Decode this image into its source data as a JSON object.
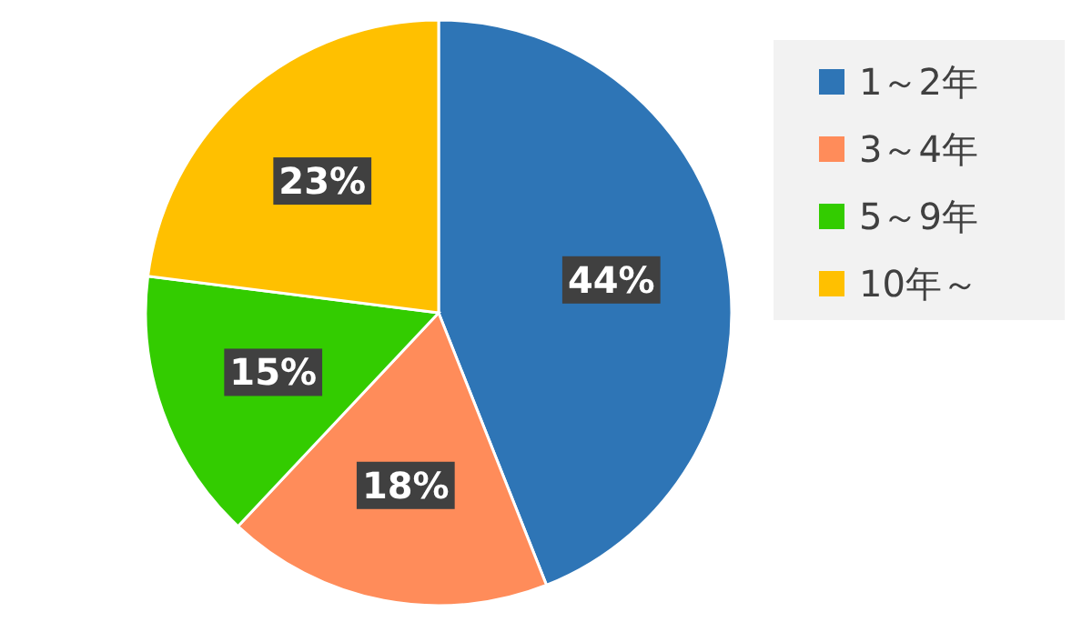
{
  "chart_data": {
    "type": "pie",
    "categories": [
      "1～2年",
      "3～4年",
      "5～9年",
      "10年～"
    ],
    "values": [
      44,
      18,
      15,
      23
    ],
    "colors": [
      "#2e75b6",
      "#ff8c5a",
      "#33cc00",
      "#ffc000"
    ],
    "value_labels": [
      "44%",
      "18%",
      "15%",
      "23%"
    ],
    "legend": "right"
  }
}
